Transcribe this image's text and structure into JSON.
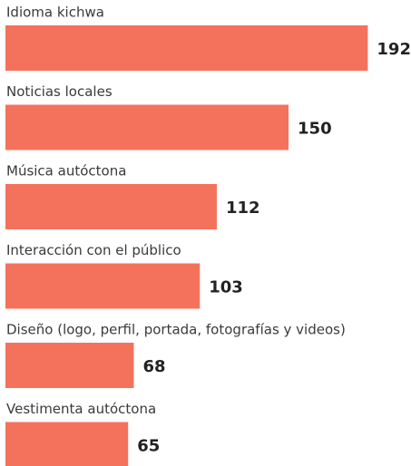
{
  "chart_data": {
    "type": "bar",
    "orientation": "horizontal",
    "categories": [
      "Idioma kichwa",
      "Noticias locales",
      "Música autóctona",
      "Interacción con el público",
      "Diseño (logo, perfil, portada, fotografías y videos)",
      "Vestimenta autóctona"
    ],
    "values": [
      192,
      150,
      112,
      103,
      68,
      65
    ],
    "color": "#f4725c",
    "xlim": [
      0,
      212
    ]
  }
}
